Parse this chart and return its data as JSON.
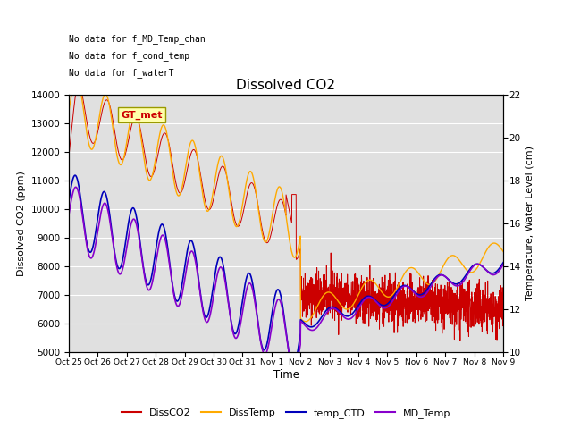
{
  "title": "Dissolved CO2",
  "xlabel": "Time",
  "ylabel_left": "Dissolved CO2 (ppm)",
  "ylabel_right": "Temperature, Water Level (cm)",
  "ylim_left": [
    5000,
    14000
  ],
  "ylim_right": [
    10,
    22
  ],
  "yticks_left": [
    5000,
    6000,
    7000,
    8000,
    9000,
    10000,
    11000,
    12000,
    13000,
    14000
  ],
  "yticks_right": [
    10,
    12,
    14,
    16,
    18,
    20,
    22
  ],
  "xtick_labels": [
    "Oct 25",
    "Oct 26",
    "Oct 27",
    "Oct 28",
    "Oct 29",
    "Oct 30",
    "Oct 31",
    "Nov 1",
    "Nov 2",
    "Nov 3",
    "Nov 4",
    "Nov 5",
    "Nov 6",
    "Nov 7",
    "Nov 8",
    "Nov 9"
  ],
  "annotations": [
    "No data for f_MD_Temp_chan",
    "No data for f_cond_temp",
    "No data for f_waterT"
  ],
  "gt_met_label": "GT_met",
  "colors": {
    "disco2": "#cc0000",
    "disstemp": "#ffaa00",
    "temp_ctd": "#0000bb",
    "md_temp": "#8800cc"
  },
  "bg_color": "#e0e0e0",
  "fig_size": [
    6.4,
    4.8
  ],
  "dpi": 100
}
